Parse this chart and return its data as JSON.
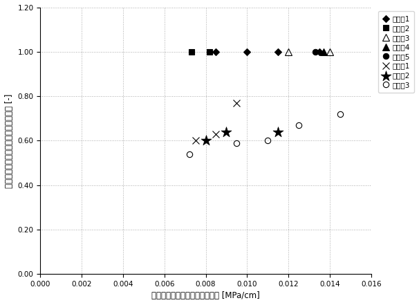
{
  "title": "",
  "xlabel": "充填停止時カラム圧／ベッド高 [MPa/cm]",
  "ylabel": "メインピークエリア／全ピークエリア [-]",
  "xlim": [
    0.0,
    0.016
  ],
  "ylim": [
    0.0,
    1.2
  ],
  "xticks": [
    0.0,
    0.002,
    0.004,
    0.006,
    0.008,
    0.01,
    0.012,
    0.014,
    0.016
  ],
  "yticks": [
    0.0,
    0.2,
    0.4,
    0.6,
    0.8,
    1.0,
    1.2
  ],
  "series": [
    {
      "label": "実施例1",
      "marker": "D",
      "color": "black",
      "filled": true,
      "markersize": 5,
      "x": [
        0.0085,
        0.01,
        0.0115,
        0.0135
      ],
      "y": [
        1.0,
        1.0,
        1.0,
        1.0
      ]
    },
    {
      "label": "実施例2",
      "marker": "s",
      "color": "black",
      "filled": true,
      "markersize": 6,
      "x": [
        0.0073,
        0.0082
      ],
      "y": [
        1.0,
        1.0
      ]
    },
    {
      "label": "実施例3",
      "marker": "^",
      "color": "black",
      "filled": false,
      "markersize": 7,
      "x": [
        0.012,
        0.014
      ],
      "y": [
        1.0,
        1.0
      ]
    },
    {
      "label": "実施例4",
      "marker": "^",
      "color": "black",
      "filled": true,
      "markersize": 7,
      "x": [
        0.0137
      ],
      "y": [
        1.0
      ]
    },
    {
      "label": "実施例5",
      "marker": "o",
      "color": "black",
      "filled": true,
      "markersize": 6,
      "x": [
        0.0133
      ],
      "y": [
        1.0
      ]
    },
    {
      "label": "比較例1",
      "marker": "x",
      "color": "black",
      "filled": false,
      "markersize": 7,
      "x": [
        0.0075,
        0.0085,
        0.0095
      ],
      "y": [
        0.6,
        0.63,
        0.77
      ]
    },
    {
      "label": "比較例2",
      "marker": "x",
      "color": "black",
      "filled": false,
      "markersize": 8,
      "x": [
        0.008,
        0.009,
        0.0115
      ],
      "y": [
        0.6,
        0.64,
        0.64
      ],
      "use_asterisk": true
    },
    {
      "label": "比較例3",
      "marker": "o",
      "color": "black",
      "filled": false,
      "markersize": 6,
      "x": [
        0.0072,
        0.0095,
        0.011,
        0.0125,
        0.0145
      ],
      "y": [
        0.54,
        0.59,
        0.6,
        0.67,
        0.72
      ]
    }
  ],
  "grid_color": "#aaaaaa",
  "bg_color": "#ffffff",
  "legend_fontsize": 7.5,
  "axis_fontsize": 8.5,
  "tick_fontsize": 7.5
}
